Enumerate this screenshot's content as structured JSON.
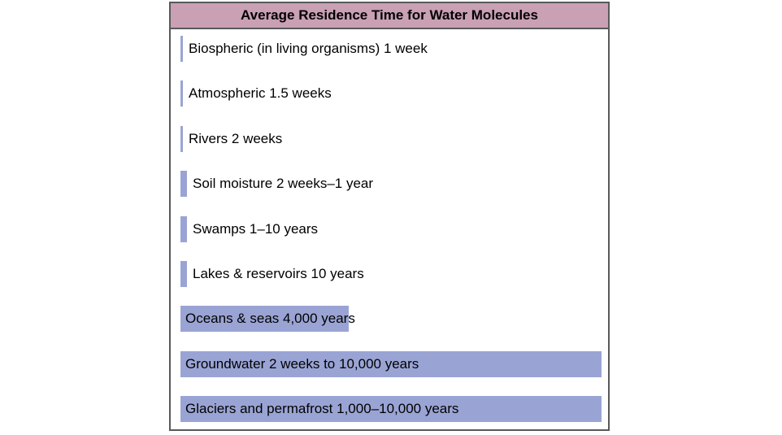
{
  "chart_data": {
    "type": "bar",
    "orientation": "horizontal",
    "title": "Average Residence Time for Water Molecules",
    "bar_color": "#9aa4d4",
    "header_color": "#c9a0b4",
    "categories": [
      "Biospheric (in living organisms) 1 week",
      "Atmospheric 1.5 weeks",
      "Rivers 2 weeks",
      "Soil moisture 2 weeks–1 year",
      "Swamps 1–10 years",
      "Lakes & reservoirs 10 years",
      "Oceans & seas 4,000 years",
      "Groundwater 2 weeks to 10,000 years",
      "Glaciers and permafrost 1,000–10,000 years"
    ],
    "values_years": [
      0.019,
      0.029,
      0.038,
      1,
      10,
      10,
      4000,
      10000,
      10000
    ],
    "xlim_years": [
      0,
      10000
    ],
    "grid": false,
    "legend": "none"
  }
}
